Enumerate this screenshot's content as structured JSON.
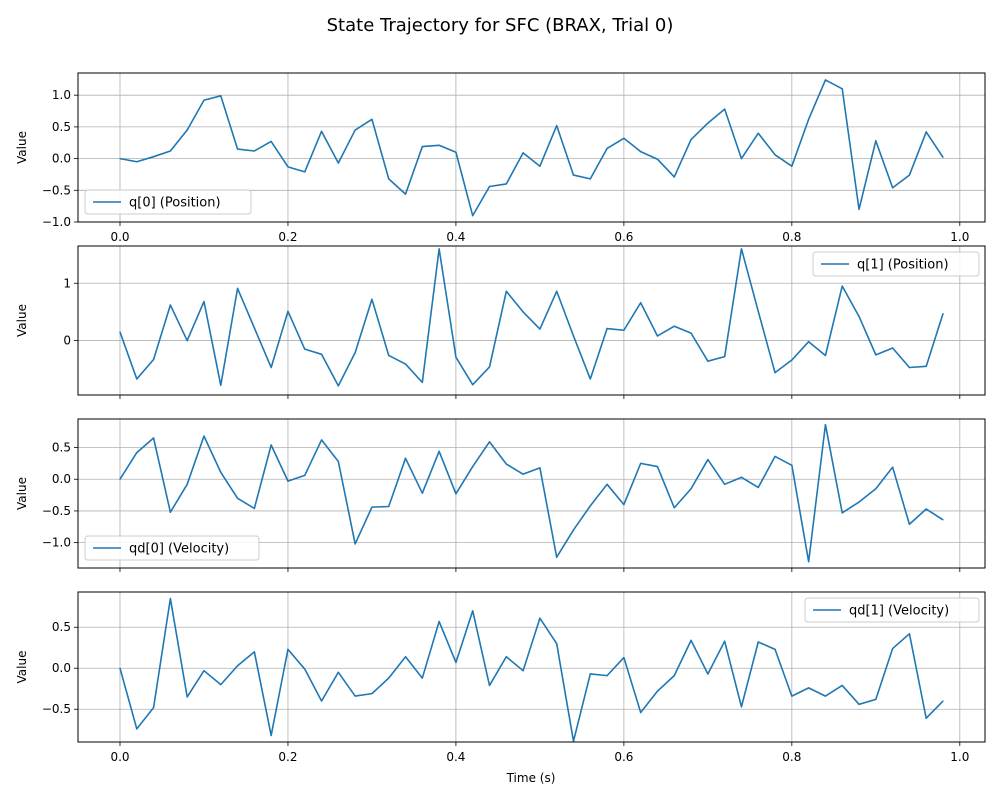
{
  "figure": {
    "title": "State Trajectory for SFC (BRAX, Trial 0)",
    "xlabel": "Time (s)",
    "line_color": "#1f77b4"
  },
  "chart_data": [
    {
      "type": "line",
      "title": "",
      "xlabel": "",
      "ylabel": "Value",
      "xlim": [
        -0.05,
        1.03
      ],
      "ylim": [
        -1.0,
        1.35
      ],
      "xticks": [
        0.0,
        0.2,
        0.4,
        0.6,
        0.8,
        1.0
      ],
      "xtick_labels": [
        "0.0",
        "0.2",
        "0.4",
        "0.6",
        "0.8",
        "1.0"
      ],
      "yticks": [
        -1.0,
        -0.5,
        0.0,
        0.5,
        1.0
      ],
      "ytick_labels": [
        "−1.0",
        "−0.5",
        "0.0",
        "0.5",
        "1.0"
      ],
      "grid": true,
      "legend_position": "lower-left",
      "x": [
        0,
        0.02,
        0.04,
        0.06,
        0.08,
        0.1,
        0.12,
        0.14,
        0.16,
        0.18,
        0.2,
        0.22,
        0.24,
        0.26,
        0.28,
        0.3,
        0.32,
        0.34,
        0.36,
        0.38,
        0.4,
        0.42,
        0.44,
        0.46,
        0.48,
        0.5,
        0.52,
        0.54,
        0.56,
        0.58,
        0.6,
        0.62,
        0.64,
        0.66,
        0.68,
        0.7,
        0.72,
        0.74,
        0.76,
        0.78,
        0.8,
        0.82,
        0.84,
        0.86,
        0.88,
        0.9,
        0.92,
        0.94,
        0.96,
        0.98
      ],
      "series": [
        {
          "name": "q[0] (Position)",
          "values": [
            0.0,
            -0.05,
            0.03,
            0.12,
            0.45,
            0.92,
            0.99,
            0.15,
            0.12,
            0.27,
            -0.13,
            -0.21,
            0.43,
            -0.07,
            0.45,
            0.62,
            -0.32,
            -0.56,
            0.19,
            0.21,
            0.1,
            -0.9,
            -0.44,
            -0.4,
            0.09,
            -0.12,
            0.52,
            -0.26,
            -0.32,
            0.16,
            0.32,
            0.11,
            -0.01,
            -0.29,
            0.3,
            0.56,
            0.78,
            0.0,
            0.4,
            0.06,
            -0.12,
            0.62,
            1.24,
            1.1,
            -0.8,
            0.28,
            -0.46,
            -0.26,
            0.42,
            0.02
          ]
        }
      ]
    },
    {
      "type": "line",
      "title": "",
      "xlabel": "",
      "ylabel": "Value",
      "xlim": [
        -0.05,
        1.03
      ],
      "ylim": [
        -0.95,
        1.65
      ],
      "xticks": [
        0.0,
        0.2,
        0.4,
        0.6,
        0.8,
        1.0
      ],
      "xtick_labels": [
        "",
        "",
        "",
        "",
        "",
        ""
      ],
      "yticks": [
        0,
        1
      ],
      "ytick_labels": [
        "0",
        "1"
      ],
      "grid": true,
      "legend_position": "upper-right",
      "x": [
        0,
        0.02,
        0.04,
        0.06,
        0.08,
        0.1,
        0.12,
        0.14,
        0.16,
        0.18,
        0.2,
        0.22,
        0.24,
        0.26,
        0.28,
        0.3,
        0.32,
        0.34,
        0.36,
        0.38,
        0.4,
        0.42,
        0.44,
        0.46,
        0.48,
        0.5,
        0.52,
        0.54,
        0.56,
        0.58,
        0.6,
        0.62,
        0.64,
        0.66,
        0.68,
        0.7,
        0.72,
        0.74,
        0.76,
        0.78,
        0.8,
        0.82,
        0.84,
        0.86,
        0.88,
        0.9,
        0.92,
        0.94,
        0.96,
        0.98
      ],
      "series": [
        {
          "name": "q[1] (Position)",
          "values": [
            0.15,
            -0.67,
            -0.33,
            0.62,
            0.0,
            0.68,
            -0.78,
            0.91,
            0.22,
            -0.47,
            0.51,
            -0.15,
            -0.24,
            -0.79,
            -0.21,
            0.72,
            -0.26,
            -0.41,
            -0.73,
            1.6,
            -0.29,
            -0.77,
            -0.46,
            0.86,
            0.5,
            0.2,
            0.86,
            0.08,
            -0.67,
            0.21,
            0.18,
            0.66,
            0.08,
            0.25,
            0.13,
            -0.36,
            -0.28,
            1.6,
            0.51,
            -0.56,
            -0.34,
            -0.02,
            -0.26,
            0.95,
            0.42,
            -0.25,
            -0.13,
            -0.47,
            -0.45,
            0.47
          ]
        }
      ]
    },
    {
      "type": "line",
      "title": "",
      "xlabel": "",
      "ylabel": "Value",
      "xlim": [
        -0.05,
        1.03
      ],
      "ylim": [
        -1.4,
        0.95
      ],
      "xticks": [
        0.0,
        0.2,
        0.4,
        0.6,
        0.8,
        1.0
      ],
      "xtick_labels": [
        "",
        "",
        "",
        "",
        "",
        ""
      ],
      "yticks": [
        -1.0,
        -0.5,
        0.0,
        0.5
      ],
      "ytick_labels": [
        "−1.0",
        "−0.5",
        "0.0",
        "0.5"
      ],
      "grid": true,
      "legend_position": "lower-left",
      "x": [
        0,
        0.02,
        0.04,
        0.06,
        0.08,
        0.1,
        0.12,
        0.14,
        0.16,
        0.18,
        0.2,
        0.22,
        0.24,
        0.26,
        0.28,
        0.3,
        0.32,
        0.34,
        0.36,
        0.38,
        0.4,
        0.42,
        0.44,
        0.46,
        0.48,
        0.5,
        0.52,
        0.54,
        0.56,
        0.58,
        0.6,
        0.62,
        0.64,
        0.66,
        0.68,
        0.7,
        0.72,
        0.74,
        0.76,
        0.78,
        0.8,
        0.82,
        0.84,
        0.86,
        0.88,
        0.9,
        0.92,
        0.94,
        0.96,
        0.98
      ],
      "series": [
        {
          "name": "qd[0] (Velocity)",
          "values": [
            0.0,
            0.42,
            0.65,
            -0.52,
            -0.08,
            0.68,
            0.11,
            -0.3,
            -0.46,
            0.54,
            -0.03,
            0.06,
            0.62,
            0.28,
            -1.02,
            -0.44,
            -0.43,
            0.33,
            -0.22,
            0.44,
            -0.23,
            0.2,
            0.59,
            0.24,
            0.08,
            0.18,
            -1.23,
            -0.8,
            -0.42,
            -0.08,
            -0.4,
            0.25,
            0.2,
            -0.45,
            -0.15,
            0.31,
            -0.08,
            0.03,
            -0.13,
            0.36,
            0.22,
            -1.3,
            0.86,
            -0.53,
            -0.36,
            -0.15,
            0.19,
            -0.71,
            -0.47,
            -0.64
          ]
        }
      ]
    },
    {
      "type": "line",
      "title": "",
      "xlabel": "Time (s)",
      "ylabel": "Value",
      "xlim": [
        -0.05,
        1.03
      ],
      "ylim": [
        -0.9,
        0.93
      ],
      "xticks": [
        0.0,
        0.2,
        0.4,
        0.6,
        0.8,
        1.0
      ],
      "xtick_labels": [
        "0.0",
        "0.2",
        "0.4",
        "0.6",
        "0.8",
        "1.0"
      ],
      "yticks": [
        -0.5,
        0.0,
        0.5
      ],
      "ytick_labels": [
        "−0.5",
        "0.0",
        "0.5"
      ],
      "grid": true,
      "legend_position": "upper-right",
      "x": [
        0,
        0.02,
        0.04,
        0.06,
        0.08,
        0.1,
        0.12,
        0.14,
        0.16,
        0.18,
        0.2,
        0.22,
        0.24,
        0.26,
        0.28,
        0.3,
        0.32,
        0.34,
        0.36,
        0.38,
        0.4,
        0.42,
        0.44,
        0.46,
        0.48,
        0.5,
        0.52,
        0.54,
        0.56,
        0.58,
        0.6,
        0.62,
        0.64,
        0.66,
        0.68,
        0.7,
        0.72,
        0.74,
        0.76,
        0.78,
        0.8,
        0.82,
        0.84,
        0.86,
        0.88,
        0.9,
        0.92,
        0.94,
        0.96,
        0.98
      ],
      "series": [
        {
          "name": "qd[1] (Velocity)",
          "values": [
            0.0,
            -0.74,
            -0.48,
            0.85,
            -0.35,
            -0.03,
            -0.2,
            0.03,
            0.2,
            -0.82,
            0.23,
            -0.01,
            -0.4,
            -0.05,
            -0.34,
            -0.31,
            -0.12,
            0.14,
            -0.12,
            0.57,
            0.07,
            0.7,
            -0.21,
            0.14,
            -0.03,
            0.61,
            0.3,
            -0.89,
            -0.07,
            -0.09,
            0.13,
            -0.54,
            -0.28,
            -0.09,
            0.34,
            -0.07,
            0.33,
            -0.47,
            0.32,
            0.23,
            -0.34,
            -0.24,
            -0.34,
            -0.21,
            -0.44,
            -0.38,
            0.24,
            0.42,
            -0.61,
            -0.4
          ]
        }
      ]
    }
  ]
}
